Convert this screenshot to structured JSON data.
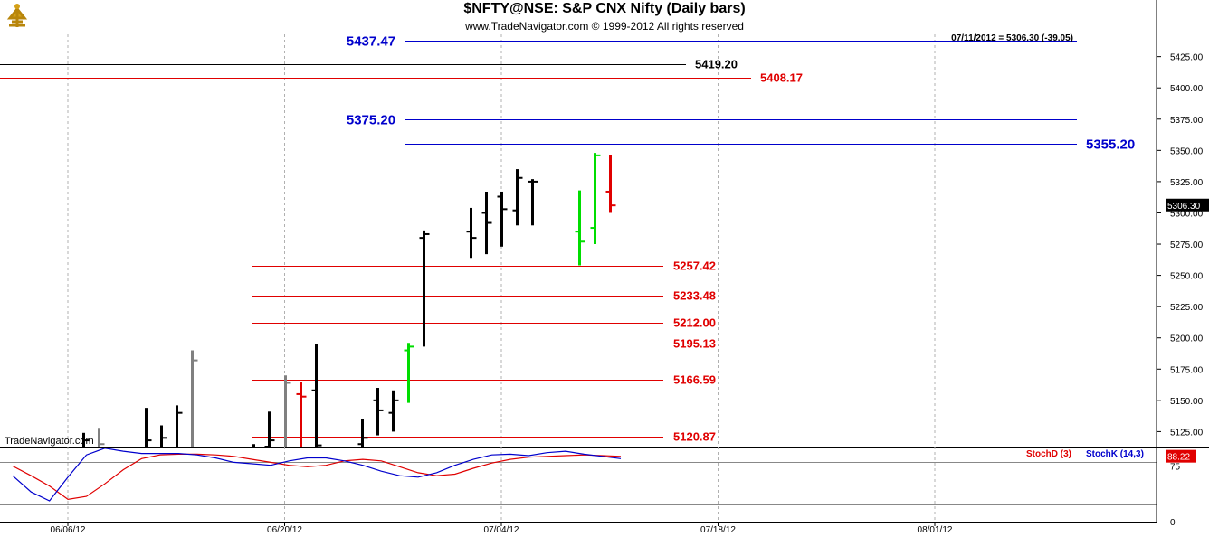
{
  "header": {
    "title": "$NFTY@NSE:  S&P CNX Nifty  (Daily bars)",
    "subtitle": "www.TradeNavigator.com © 1999-2012 All rights reserved",
    "last_info": "07/11/2012 = 5306.30 (-39.05)",
    "watermark": "TradeNavigator.com"
  },
  "colors": {
    "bar_up": "#000000",
    "bar_gray": "#808080",
    "bar_green": "#00dd00",
    "bar_red": "#e00000",
    "blue_level": "#0000cc",
    "red_level": "#e00000",
    "black_level": "#000000",
    "stoch_d": "#e00000",
    "stoch_k": "#0000cc"
  },
  "chart_data": {
    "type": "ohlc",
    "title": "$NFTY@NSE:  S&P CNX Nifty  (Daily bars)",
    "x_ticks": [
      "06/06/12",
      "06/20/12",
      "07/04/12",
      "07/18/12",
      "08/01/12"
    ],
    "y_ticks": [
      "5125.00",
      "5150.00",
      "5175.00",
      "5200.00",
      "5225.00",
      "5250.00",
      "5275.00",
      "5300.00",
      "5325.00",
      "5350.00",
      "5375.00",
      "5400.00",
      "5425.00"
    ],
    "ylim": [
      5113,
      5445
    ],
    "last_price_label": "5306.30",
    "bars": [
      {
        "date": "06/07/12",
        "open": 5105,
        "high": 5124,
        "low": 5105,
        "close": 5118,
        "color": "black"
      },
      {
        "date": "06/08/12",
        "open": 5112,
        "high": 5128,
        "low": 5112,
        "close": 5115,
        "color": "gray"
      },
      {
        "date": "06/11/12",
        "open": 5112,
        "high": 5144,
        "low": 5110,
        "close": 5118,
        "color": "black"
      },
      {
        "date": "06/12/12",
        "open": 5110,
        "high": 5130,
        "low": 5110,
        "close": 5120,
        "color": "black"
      },
      {
        "date": "06/13/12",
        "open": 5112,
        "high": 5146,
        "low": 5110,
        "close": 5140,
        "color": "black"
      },
      {
        "date": "06/14/12",
        "open": 5110,
        "high": 5190,
        "low": 5110,
        "close": 5182,
        "color": "gray"
      },
      {
        "date": "06/18/12",
        "open": 5108,
        "high": 5115,
        "low": 5104,
        "close": 5112,
        "color": "black"
      },
      {
        "date": "06/19/12",
        "open": 5113,
        "high": 5141,
        "low": 5113,
        "close": 5118,
        "color": "black"
      },
      {
        "date": "06/20/12",
        "open": 5110,
        "high": 5170,
        "low": 5110,
        "close": 5164,
        "color": "gray"
      },
      {
        "date": "06/21/12",
        "open": 5155,
        "high": 5165,
        "low": 5110,
        "close": 5153,
        "color": "red"
      },
      {
        "date": "06/22/12",
        "open": 5158,
        "high": 5195,
        "low": 5112,
        "close": 5114,
        "color": "black"
      },
      {
        "date": "06/25/12",
        "open": 5115,
        "high": 5135,
        "low": 5110,
        "close": 5120,
        "color": "black"
      },
      {
        "date": "06/26/12",
        "open": 5150,
        "high": 5160,
        "low": 5122,
        "close": 5142,
        "color": "black"
      },
      {
        "date": "06/27/12",
        "open": 5140,
        "high": 5158,
        "low": 5125,
        "close": 5150,
        "color": "black"
      },
      {
        "date": "06/28/12",
        "open": 5190,
        "high": 5196,
        "low": 5148,
        "close": 5193,
        "color": "green"
      },
      {
        "date": "06/29/12",
        "open": 5280,
        "high": 5286,
        "low": 5193,
        "close": 5283,
        "color": "black"
      },
      {
        "date": "07/02/12",
        "open": 5285,
        "high": 5304,
        "low": 5264,
        "close": 5280,
        "color": "black"
      },
      {
        "date": "07/03/12",
        "open": 5300,
        "high": 5317,
        "low": 5267,
        "close": 5292,
        "color": "black"
      },
      {
        "date": "07/04/12",
        "open": 5313,
        "high": 5317,
        "low": 5273,
        "close": 5303,
        "color": "black"
      },
      {
        "date": "07/05/12",
        "open": 5302,
        "high": 5335,
        "low": 5290,
        "close": 5328,
        "color": "black"
      },
      {
        "date": "07/06/12",
        "open": 5325,
        "high": 5327,
        "low": 5290,
        "close": 5325,
        "color": "black"
      },
      {
        "date": "07/09/12",
        "open": 5285,
        "high": 5318,
        "low": 5258,
        "close": 5277,
        "color": "green"
      },
      {
        "date": "07/10/12",
        "open": 5288,
        "high": 5348,
        "low": 5275,
        "close": 5346,
        "color": "green"
      },
      {
        "date": "07/11/12",
        "open": 5317,
        "high": 5346,
        "low": 5300,
        "close": 5306,
        "color": "red"
      }
    ],
    "levels": [
      {
        "value": "5437.47",
        "color": "blue",
        "label_side": "left"
      },
      {
        "value": "5419.20",
        "color": "black",
        "label_side": "right"
      },
      {
        "value": "5408.17",
        "color": "red",
        "label_side": "right"
      },
      {
        "value": "5375.20",
        "color": "blue",
        "label_side": "left"
      },
      {
        "value": "5355.20",
        "color": "blue",
        "label_side": "right"
      },
      {
        "value": "5257.42",
        "color": "red",
        "label_side": "right"
      },
      {
        "value": "5233.48",
        "color": "red",
        "label_side": "right"
      },
      {
        "value": "5212.00",
        "color": "red",
        "label_side": "right"
      },
      {
        "value": "5195.13",
        "color": "red",
        "label_side": "right"
      },
      {
        "value": "5166.59",
        "color": "red",
        "label_side": "right"
      },
      {
        "value": "5120.87",
        "color": "red",
        "label_side": "right"
      }
    ],
    "stochastic": {
      "ylim": [
        0,
        100
      ],
      "y_ticks": [
        "75",
        "0"
      ],
      "reference_line": 80,
      "last_value_label": "88.22",
      "series": [
        {
          "name": "StochD (3)",
          "values": [
            75,
            62,
            48,
            30,
            34,
            51,
            70,
            85,
            90,
            91,
            91,
            90,
            88,
            84,
            80,
            76,
            74,
            76,
            82,
            84,
            82,
            74,
            66,
            62,
            64,
            72,
            79,
            84,
            87,
            88,
            89,
            90,
            89,
            88
          ]
        },
        {
          "name": "StochK (14,3)",
          "values": [
            62,
            40,
            28,
            60,
            90,
            99,
            95,
            92,
            92,
            92,
            90,
            86,
            80,
            78,
            76,
            82,
            86,
            86,
            82,
            76,
            68,
            62,
            60,
            66,
            76,
            84,
            90,
            91,
            89,
            93,
            95,
            91,
            88,
            85
          ]
        }
      ]
    }
  }
}
